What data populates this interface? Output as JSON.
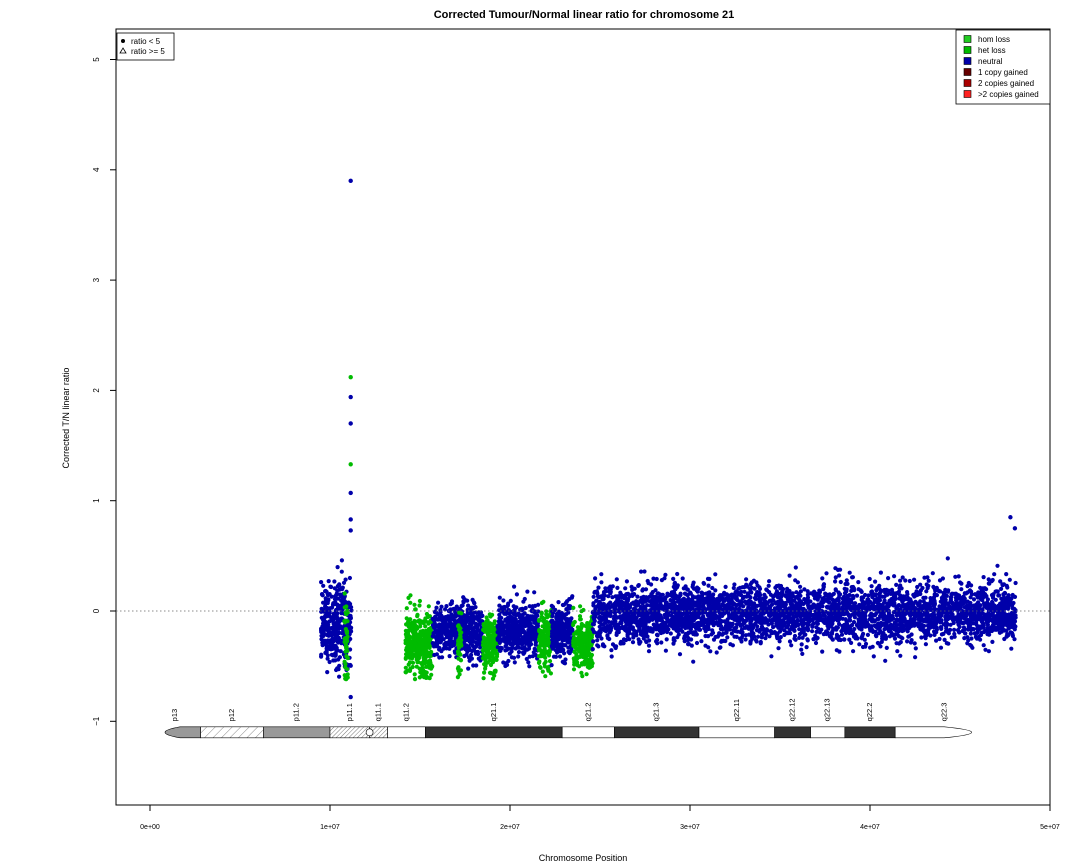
{
  "chart_data": {
    "type": "scatter",
    "title": "Corrected Tumour/Normal linear ratio for chromosome  21",
    "xlabel": "Chromosome Position",
    "ylabel": "Corrected T/N linear ratio",
    "xlim": [
      -2000000,
      50000000
    ],
    "ylim": [
      -1.8,
      5.25
    ],
    "x_ticks": [
      0,
      10000000,
      20000000,
      30000000,
      40000000,
      50000000
    ],
    "x_tick_labels": [
      "0e+00",
      "1e+07",
      "2e+07",
      "3e+07",
      "4e+07",
      "5e+07"
    ],
    "y_ticks": [
      -1,
      0,
      1,
      2,
      3,
      4,
      5
    ],
    "y_tick_labels": [
      "−1",
      "0",
      "1",
      "2",
      "3",
      "4",
      "5"
    ],
    "reference_line_y": 0,
    "shape_legend": {
      "position": "top-left",
      "items": [
        {
          "symbol": "dot",
          "label": "ratio < 5"
        },
        {
          "symbol": "triangle",
          "label": "ratio >= 5"
        }
      ]
    },
    "legend": {
      "position": "top-right",
      "items": [
        {
          "label": "hom loss",
          "color": "#22cc22"
        },
        {
          "label": "het loss",
          "color": "#00bb00"
        },
        {
          "label": "neutral",
          "color": "#0000aa"
        },
        {
          "label": "1 copy gained",
          "color": "#660000"
        },
        {
          "label": "2 copies gained",
          "color": "#aa0000"
        },
        {
          "label": ">2 copies gained",
          "color": "#ff2222"
        }
      ]
    },
    "segments": [
      {
        "start": 9500000,
        "end": 10500000,
        "state": "neutral",
        "mean": -0.12,
        "spread": 0.18,
        "n": 220
      },
      {
        "start": 10500000,
        "end": 11200000,
        "state": "neutral",
        "mean": -0.12,
        "spread": 0.18,
        "n": 140
      },
      {
        "start": 10800000,
        "end": 11000000,
        "state": "het loss",
        "mean": -0.28,
        "spread": 0.2,
        "n": 45
      },
      {
        "start": 14200000,
        "end": 15700000,
        "state": "het loss",
        "mean": -0.3,
        "spread": 0.14,
        "n": 340
      },
      {
        "start": 15700000,
        "end": 18500000,
        "state": "neutral",
        "mean": -0.18,
        "spread": 0.12,
        "n": 520
      },
      {
        "start": 17100000,
        "end": 17300000,
        "state": "het loss",
        "mean": -0.3,
        "spread": 0.13,
        "n": 40
      },
      {
        "start": 18500000,
        "end": 19300000,
        "state": "het loss",
        "mean": -0.3,
        "spread": 0.12,
        "n": 180
      },
      {
        "start": 19300000,
        "end": 21600000,
        "state": "neutral",
        "mean": -0.18,
        "spread": 0.12,
        "n": 460
      },
      {
        "start": 21600000,
        "end": 22300000,
        "state": "het loss",
        "mean": -0.28,
        "spread": 0.13,
        "n": 150
      },
      {
        "start": 22300000,
        "end": 23500000,
        "state": "neutral",
        "mean": -0.18,
        "spread": 0.12,
        "n": 260
      },
      {
        "start": 23500000,
        "end": 24600000,
        "state": "het loss",
        "mean": -0.28,
        "spread": 0.13,
        "n": 240
      },
      {
        "start": 24600000,
        "end": 48100000,
        "state": "neutral",
        "mean": -0.02,
        "spread": 0.13,
        "n": 3600
      }
    ],
    "outliers": [
      {
        "x": 11150000,
        "y": 3.9,
        "state": "neutral"
      },
      {
        "x": 11150000,
        "y": 2.12,
        "state": "het loss"
      },
      {
        "x": 11150000,
        "y": 1.94,
        "state": "neutral"
      },
      {
        "x": 11150000,
        "y": 1.7,
        "state": "neutral"
      },
      {
        "x": 11150000,
        "y": 1.33,
        "state": "het loss"
      },
      {
        "x": 11150000,
        "y": 1.07,
        "state": "neutral"
      },
      {
        "x": 11150000,
        "y": 0.83,
        "state": "neutral"
      },
      {
        "x": 11150000,
        "y": 0.73,
        "state": "neutral"
      },
      {
        "x": 11150000,
        "y": -0.78,
        "state": "neutral"
      },
      {
        "x": 47800000,
        "y": 0.85,
        "state": "neutral"
      },
      {
        "x": 48050000,
        "y": 0.75,
        "state": "neutral"
      }
    ],
    "ideogram": {
      "y": -1.1,
      "bands": [
        {
          "name": "p13",
          "start": 0,
          "end": 2800000,
          "stain": "acen-like"
        },
        {
          "name": "p12",
          "start": 2800000,
          "end": 6300000,
          "stain": "stalk"
        },
        {
          "name": "p11.2",
          "start": 6300000,
          "end": 10000000,
          "stain": "gpos50"
        },
        {
          "name": "p11.1",
          "start": 10000000,
          "end": 12200000,
          "stain": "stalk-dense"
        },
        {
          "name": "q11.1",
          "start": 12200000,
          "end": 13200000,
          "stain": "stalk-dense"
        },
        {
          "name": "q11.2",
          "start": 13200000,
          "end": 15300000,
          "stain": "gneg"
        },
        {
          "name": "q21.1",
          "start": 15300000,
          "end": 22900000,
          "stain": "gpos100"
        },
        {
          "name": "q21.2",
          "start": 22900000,
          "end": 25800000,
          "stain": "gneg"
        },
        {
          "name": "q21.3",
          "start": 25800000,
          "end": 30500000,
          "stain": "gpos100"
        },
        {
          "name": "q22.11",
          "start": 30500000,
          "end": 34700000,
          "stain": "gneg"
        },
        {
          "name": "q22.12",
          "start": 34700000,
          "end": 36700000,
          "stain": "gpos100"
        },
        {
          "name": "q22.13",
          "start": 36700000,
          "end": 38600000,
          "stain": "gneg"
        },
        {
          "name": "q22.2",
          "start": 38600000,
          "end": 41400000,
          "stain": "gpos100"
        },
        {
          "name": "q22.3",
          "start": 41400000,
          "end": 46900000,
          "stain": "gneg"
        }
      ]
    }
  }
}
